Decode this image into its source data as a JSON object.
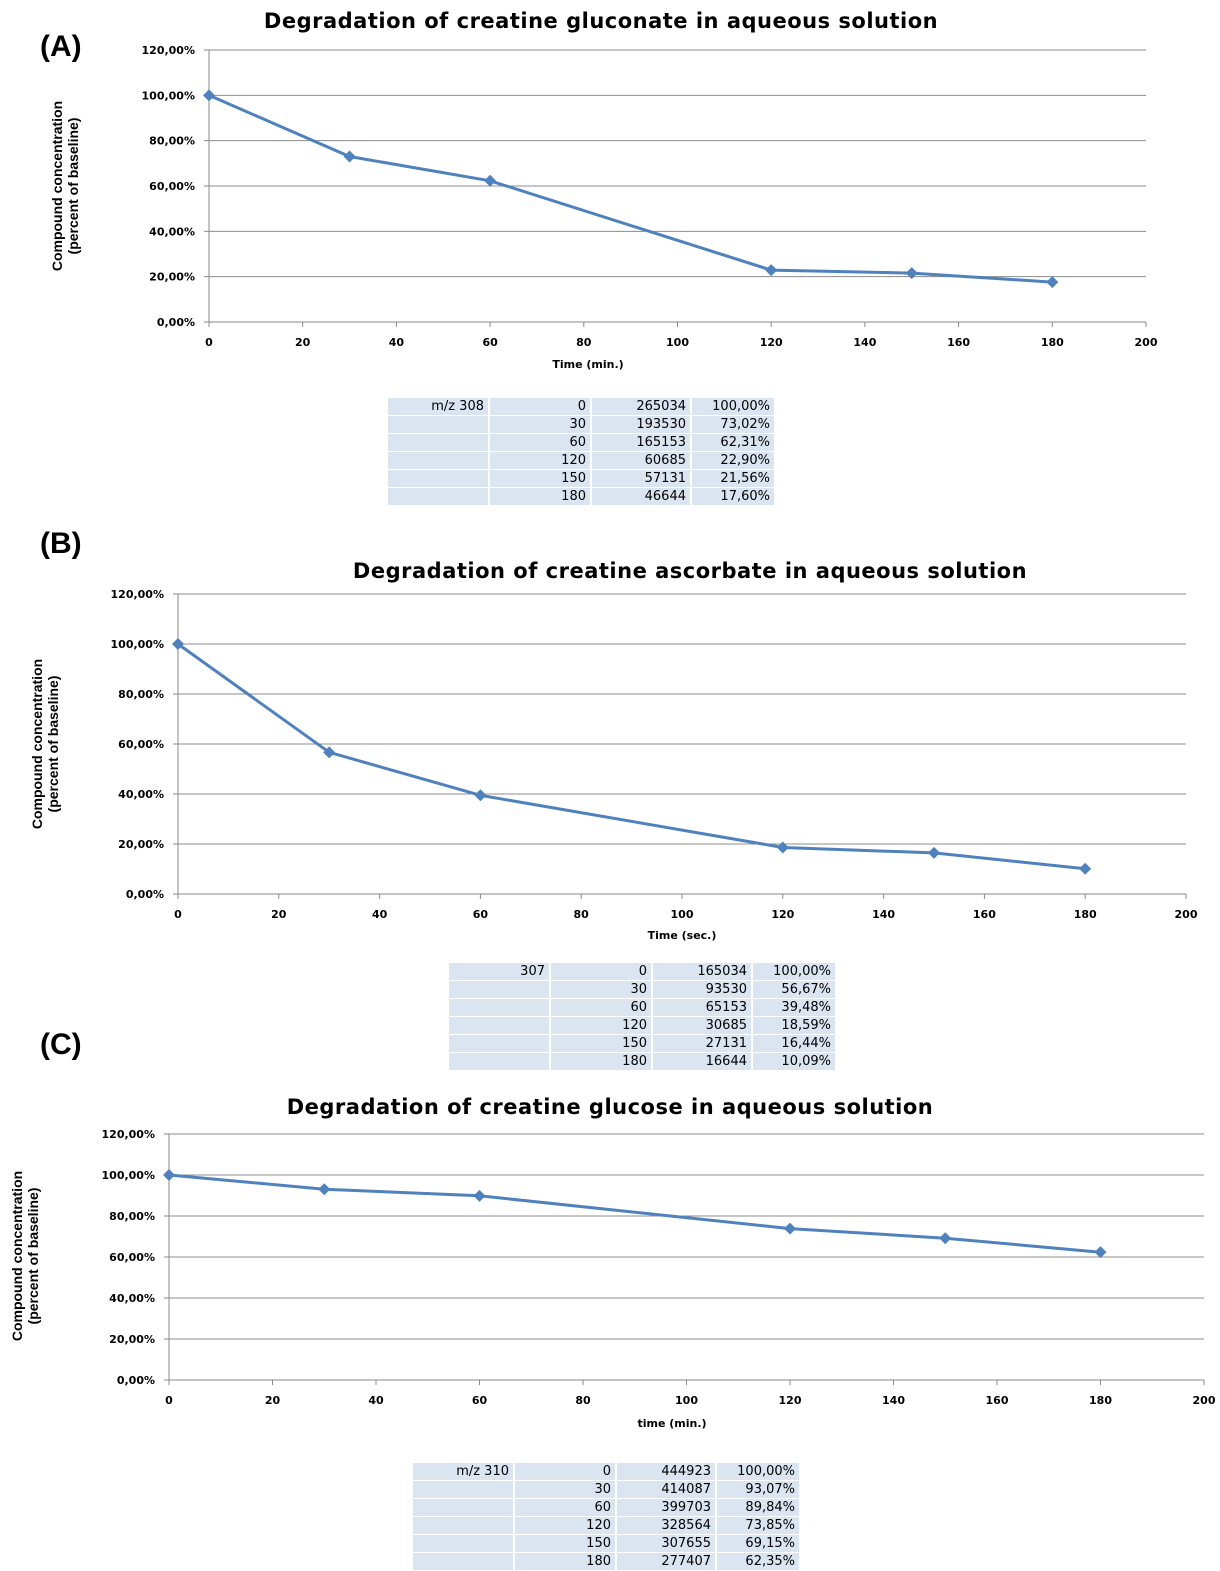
{
  "panels": [
    {
      "label": "(A)"
    },
    {
      "label": "(B)"
    },
    {
      "label": "(C)"
    }
  ],
  "chart_data": [
    {
      "type": "line",
      "title": "Degradation of creatine gluconate in aqueous solution",
      "xlabel": "Time (min.)",
      "ylabel_line1": "Compound concentration",
      "ylabel_line2": "(percent of baseline)",
      "x": [
        0,
        30,
        60,
        120,
        150,
        180
      ],
      "values": [
        100.0,
        73.02,
        62.31,
        22.9,
        21.56,
        17.6
      ],
      "xlim": [
        0,
        200
      ],
      "ylim": [
        0,
        120
      ],
      "xticks": [
        "0",
        "20",
        "40",
        "60",
        "80",
        "100",
        "120",
        "140",
        "160",
        "180",
        "200"
      ],
      "yticks": [
        "0,00%",
        "20,00%",
        "40,00%",
        "60,00%",
        "80,00%",
        "100,00%",
        "120,00%"
      ],
      "grid": "horizontal",
      "color": "#4f81bd",
      "table": [
        [
          "m/z 308",
          "0",
          "265034",
          "100,00%"
        ],
        [
          "",
          "30",
          "193530",
          "73,02%"
        ],
        [
          "",
          "60",
          "165153",
          "62,31%"
        ],
        [
          "",
          "120",
          "60685",
          "22,90%"
        ],
        [
          "",
          "150",
          "57131",
          "21,56%"
        ],
        [
          "",
          "180",
          "46644",
          "17,60%"
        ]
      ]
    },
    {
      "type": "line",
      "title": "Degradation of creatine ascorbate in aqueous solution",
      "xlabel": "Time (sec.)",
      "ylabel_line1": "Compound concentration",
      "ylabel_line2": "(percent of baseline)",
      "x": [
        0,
        30,
        60,
        120,
        150,
        180
      ],
      "values": [
        100.0,
        56.67,
        39.48,
        18.59,
        16.44,
        10.09
      ],
      "xlim": [
        0,
        200
      ],
      "ylim": [
        0,
        120
      ],
      "xticks": [
        "0",
        "20",
        "40",
        "60",
        "80",
        "100",
        "120",
        "140",
        "160",
        "180",
        "200"
      ],
      "yticks": [
        "0,00%",
        "20,00%",
        "40,00%",
        "60,00%",
        "80,00%",
        "100,00%",
        "120,00%"
      ],
      "grid": "horizontal",
      "color": "#4f81bd",
      "table": [
        [
          "307",
          "0",
          "165034",
          "100,00%"
        ],
        [
          "",
          "30",
          "93530",
          "56,67%"
        ],
        [
          "",
          "60",
          "65153",
          "39,48%"
        ],
        [
          "",
          "120",
          "30685",
          "18,59%"
        ],
        [
          "",
          "150",
          "27131",
          "16,44%"
        ],
        [
          "",
          "180",
          "16644",
          "10,09%"
        ]
      ]
    },
    {
      "type": "line",
      "title": "Degradation of creatine glucose in aqueous solution",
      "xlabel": "time (min.)",
      "ylabel_line1": "Compound concentration",
      "ylabel_line2": "(percent of baseline)",
      "x": [
        0,
        30,
        60,
        120,
        150,
        180
      ],
      "values": [
        100.0,
        93.07,
        89.84,
        73.85,
        69.15,
        62.35
      ],
      "xlim": [
        0,
        200
      ],
      "ylim": [
        0,
        120
      ],
      "xticks": [
        "0",
        "20",
        "40",
        "60",
        "80",
        "100",
        "120",
        "140",
        "160",
        "180",
        "200"
      ],
      "yticks": [
        "0,00%",
        "20,00%",
        "40,00%",
        "60,00%",
        "80,00%",
        "100,00%",
        "120,00%"
      ],
      "grid": "horizontal",
      "color": "#4f81bd",
      "table": [
        [
          "m/z 310",
          "0",
          "444923",
          "100,00%"
        ],
        [
          "",
          "30",
          "414087",
          "93,07%"
        ],
        [
          "",
          "60",
          "399703",
          "89,84%"
        ],
        [
          "",
          "120",
          "328564",
          "73,85%"
        ],
        [
          "",
          "150",
          "307655",
          "69,15%"
        ],
        [
          "",
          "180",
          "277407",
          "62,35%"
        ]
      ]
    }
  ]
}
